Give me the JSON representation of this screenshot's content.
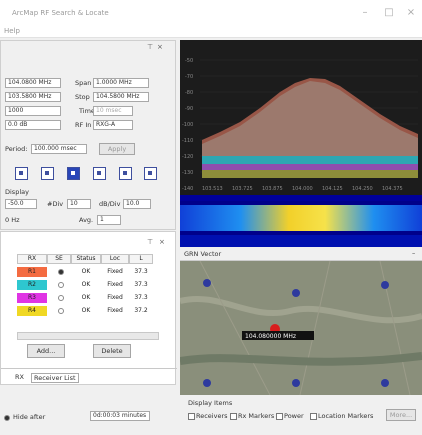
{
  "window": {
    "title": "ArcMap RF Search & Locate",
    "menu": "Help"
  },
  "tuner": {
    "center_value": "104.0800 MHz",
    "span_label": "Span",
    "span_value": "1.0000 MHz",
    "start_value": "103.5800 MHz",
    "stop_label": "Stop",
    "stop_value": "104.5800 MHz",
    "rbw_value": "1000",
    "time_label": "Time",
    "time_value": "10 msec",
    "ref_value": "0.0 dB",
    "rfin_label": "RF In",
    "rfin_value": "RXG-A",
    "period_label": "Period:",
    "period_value": "100.000 msec",
    "apply_label": "Apply"
  },
  "display": {
    "section_label": "Display",
    "ref_value": "-50.0",
    "ndiv_label": "#Div",
    "ndiv_value": "10",
    "dbdiv_label": "dB/Div",
    "dbdiv_value": "10.0",
    "avg_label": "Avg.",
    "avg_value": "1",
    "units_value": "0 Hz"
  },
  "receivers": {
    "columns": [
      "RX",
      "SE",
      "Status",
      "Loc",
      "L"
    ],
    "rows": [
      {
        "rx": "R1",
        "color": "#f46b41",
        "status": "OK",
        "loc": "Fixed",
        "l": "37.3"
      },
      {
        "rx": "R2",
        "color": "#2ec7cf",
        "status": "OK",
        "loc": "Fixed",
        "l": "37.3"
      },
      {
        "rx": "R3",
        "color": "#e034e4",
        "status": "OK",
        "loc": "Fixed",
        "l": "37.3"
      },
      {
        "rx": "R4",
        "color": "#f0d824",
        "status": "OK",
        "loc": "Fixed",
        "l": "37.2"
      }
    ],
    "add_label": "Add...",
    "delete_label": "Delete",
    "tab_a": "RX",
    "tab_b": "Receiver List"
  },
  "bottom": {
    "hide_after_label": "Hide after",
    "hide_after_value": "0d:00:03 minutes"
  },
  "spectrum": {
    "y_ticks": [
      "-50",
      "-70",
      "-80",
      "-90",
      "-100",
      "-110",
      "-120",
      "-130",
      "-140"
    ],
    "x_ticks": [
      "103.513",
      "103.725",
      "103.875",
      "104.000",
      "104.125",
      "104.250",
      "104.375"
    ]
  },
  "map": {
    "dock_title": "GRN Vector",
    "center_label": "104.080000 MHz",
    "display_items_title": "Display Items",
    "check_receivers": "Receivers",
    "check_rxmarkers": "Rx Markers",
    "check_power": "Power",
    "check_location": "Location Markers",
    "more_label": "More..."
  },
  "colors": {
    "r1": "#f46b41",
    "r2": "#2ec7cf",
    "r3": "#e034e4",
    "r4": "#f0d824",
    "accent": "#2946b8"
  }
}
